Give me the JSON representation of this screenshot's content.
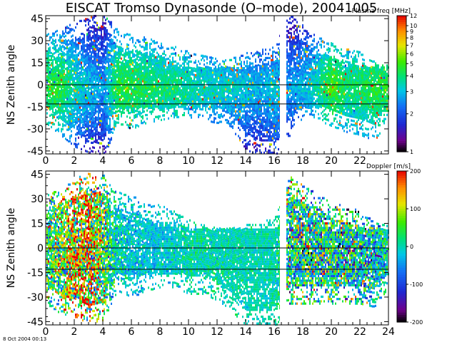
{
  "title": "EISCAT Tromso Dynasonde (O–mode),  20041005",
  "footer": "8 Oct 2004 00:13",
  "chart_data": [
    {
      "type": "heatmap",
      "panel": "top",
      "ylabel": "NS Zenith angle",
      "xlabel": "",
      "xlim": [
        0,
        24
      ],
      "ylim": [
        -47,
        47
      ],
      "x_ticks": [
        "0",
        "2",
        "4",
        "6",
        "8",
        "10",
        "12",
        "14",
        "16",
        "18",
        "20",
        "22"
      ],
      "y_ticks": [
        "45",
        "30",
        "15",
        "0",
        "-15",
        "-30",
        "-45"
      ],
      "colorbar": {
        "label": "Plasma freq [MHz]",
        "scale": "log",
        "range": [
          1,
          12
        ],
        "ticks": [
          "12",
          "10",
          "9",
          "8",
          "7",
          "6",
          "5",
          "4",
          "3",
          "2",
          "1"
        ]
      },
      "reference_lines_deg": [
        0,
        -13
      ],
      "data_gap_hours": [
        16.4,
        16.8
      ],
      "profile_hours": [
        0,
        1,
        2,
        3,
        4,
        5,
        6,
        7,
        8,
        9,
        10,
        11,
        12,
        13,
        14,
        15,
        16,
        17,
        18,
        19,
        20,
        21,
        22,
        23,
        24
      ],
      "echo_upper_deg": [
        30,
        34,
        38,
        42,
        46,
        32,
        30,
        28,
        26,
        22,
        18,
        16,
        14,
        14,
        18,
        20,
        22,
        44,
        36,
        28,
        24,
        22,
        18,
        12,
        10
      ],
      "echo_lower_deg": [
        -22,
        -30,
        -38,
        -42,
        -45,
        -22,
        -26,
        -22,
        -20,
        -18,
        -18,
        -20,
        -22,
        -26,
        -40,
        -45,
        -45,
        -30,
        -18,
        -20,
        -24,
        -28,
        -30,
        -34,
        -20
      ],
      "plasma_freq_mhz": [
        4.5,
        4.5,
        3.5,
        3.0,
        2.6,
        4.6,
        4.4,
        4.2,
        4.0,
        3.9,
        3.6,
        3.4,
        3.3,
        3.2,
        3.0,
        2.8,
        3.2,
        2.6,
        3.0,
        3.5,
        5.0,
        4.0,
        4.2,
        4.5,
        4.5
      ]
    },
    {
      "type": "heatmap",
      "panel": "bottom",
      "ylabel": "NS Zenith angle",
      "xlabel": "",
      "xlim": [
        0,
        24
      ],
      "ylim": [
        -47,
        47
      ],
      "x_ticks": [
        "0",
        "2",
        "4",
        "6",
        "8",
        "10",
        "12",
        "14",
        "16",
        "18",
        "20",
        "22",
        "24"
      ],
      "y_ticks": [
        "45",
        "30",
        "15",
        "0",
        "-15",
        "-30",
        "-45"
      ],
      "colorbar": {
        "label": "Doppler [m/s]",
        "scale": "linear",
        "range": [
          -200,
          200
        ],
        "ticks": [
          "200",
          "100",
          "0",
          "-100",
          "-200"
        ]
      },
      "reference_lines_deg": [
        0,
        -13
      ],
      "data_gap_hours": [
        16.4,
        16.8
      ],
      "profile_hours": [
        0,
        1,
        2,
        3,
        4,
        5,
        6,
        7,
        8,
        9,
        10,
        11,
        12,
        13,
        14,
        15,
        16,
        17,
        18,
        19,
        20,
        21,
        22,
        23,
        24
      ],
      "echo_upper_deg": [
        28,
        32,
        38,
        42,
        40,
        30,
        28,
        24,
        22,
        18,
        14,
        10,
        8,
        8,
        10,
        12,
        14,
        40,
        34,
        30,
        24,
        22,
        18,
        12,
        10
      ],
      "echo_lower_deg": [
        -30,
        -36,
        -38,
        -42,
        -40,
        -22,
        -26,
        -22,
        -20,
        -20,
        -24,
        -24,
        -28,
        -34,
        -45,
        -45,
        -45,
        -30,
        -30,
        -30,
        -30,
        -30,
        -30,
        -32,
        -20
      ],
      "doppler_mean_ms": [
        30,
        60,
        110,
        120,
        40,
        -10,
        -20,
        -20,
        -20,
        -10,
        0,
        0,
        0,
        0,
        0,
        0,
        0,
        20,
        10,
        0,
        10,
        0,
        -20,
        -10,
        0
      ],
      "doppler_spread_ms": [
        120,
        150,
        180,
        200,
        150,
        60,
        50,
        40,
        40,
        40,
        40,
        40,
        40,
        30,
        30,
        30,
        30,
        140,
        150,
        160,
        150,
        150,
        140,
        120,
        80
      ]
    }
  ]
}
